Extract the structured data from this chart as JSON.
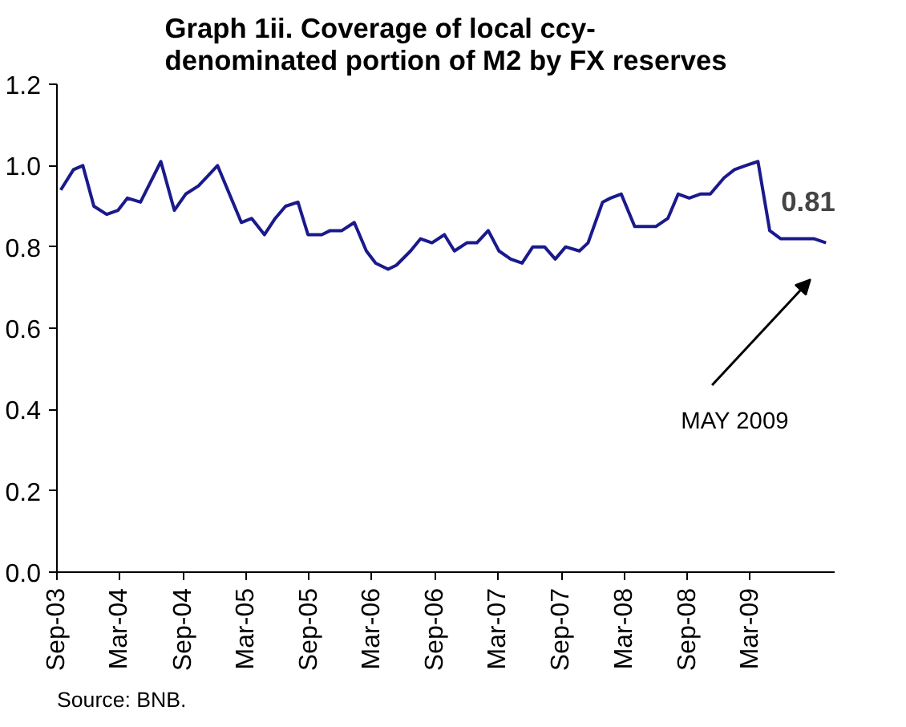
{
  "chart_data": {
    "type": "line",
    "title": "Graph 1ii. Coverage of local ccy-\ndenominated portion of M2 by FX reserves",
    "x": [
      "2003-09-12",
      "2003-10-19",
      "2003-11-15",
      "2003-12-17",
      "2004-01-23",
      "2004-02-25",
      "2004-03-23",
      "2004-04-30",
      "2004-06-28",
      "2004-08-06",
      "2004-09-08",
      "2004-10-15",
      "2004-12-09",
      "2005-02-16",
      "2005-03-18",
      "2005-04-24",
      "2005-05-25",
      "2005-06-24",
      "2005-07-30",
      "2005-08-28",
      "2005-10-07",
      "2005-10-31",
      "2005-12-04",
      "2006-01-09",
      "2006-02-13",
      "2006-03-12",
      "2006-04-17",
      "2006-05-11",
      "2006-06-21",
      "2006-07-20",
      "2006-08-22",
      "2006-09-27",
      "2006-10-26",
      "2006-12-01",
      "2006-12-30",
      "2007-02-01",
      "2007-03-04",
      "2007-04-07",
      "2007-05-10",
      "2007-06-10",
      "2007-07-14",
      "2007-08-14",
      "2007-09-13",
      "2007-10-23",
      "2007-11-17",
      "2007-12-29",
      "2008-01-21",
      "2008-02-21",
      "2008-03-31",
      "2008-05-03",
      "2008-05-31",
      "2008-07-05",
      "2008-08-04",
      "2008-09-05",
      "2008-10-07",
      "2008-11-05",
      "2008-12-15",
      "2009-01-14",
      "2009-02-15",
      "2009-03-23",
      "2009-04-26",
      "2009-05-28",
      "2009-06-26",
      "2009-07-29",
      "2009-09-02",
      "2009-10-06"
    ],
    "series": [
      {
        "color": "#1a1a8c",
        "values": [
          0.94,
          0.99,
          1.0,
          0.9,
          0.88,
          0.89,
          0.92,
          0.91,
          1.01,
          0.89,
          0.93,
          0.95,
          1.0,
          0.86,
          0.87,
          0.83,
          0.87,
          0.9,
          0.91,
          0.83,
          0.83,
          0.84,
          0.84,
          0.86,
          0.79,
          0.76,
          0.745,
          0.755,
          0.79,
          0.82,
          0.81,
          0.83,
          0.79,
          0.81,
          0.81,
          0.84,
          0.79,
          0.77,
          0.76,
          0.8,
          0.8,
          0.77,
          0.8,
          0.79,
          0.81,
          0.91,
          0.92,
          0.93,
          0.85,
          0.85,
          0.85,
          0.87,
          0.93,
          0.92,
          0.93,
          0.93,
          0.97,
          0.99,
          1.0,
          1.01,
          0.84,
          0.82,
          0.82,
          0.82,
          0.82,
          0.81
        ]
      }
    ],
    "xlim": [
      "2003-09-01",
      "2009-10-31"
    ],
    "xticks": [
      {
        "value": "2003-09",
        "label": "Sep-03"
      },
      {
        "value": "2004-03",
        "label": "Mar-04"
      },
      {
        "value": "2004-09",
        "label": "Sep-04"
      },
      {
        "value": "2005-03",
        "label": "Mar-05"
      },
      {
        "value": "2005-09",
        "label": "Sep-05"
      },
      {
        "value": "2006-03",
        "label": "Mar-06"
      },
      {
        "value": "2006-09",
        "label": "Sep-06"
      },
      {
        "value": "2007-03",
        "label": "Mar-07"
      },
      {
        "value": "2007-09",
        "label": "Sep-07"
      },
      {
        "value": "2008-03",
        "label": "Mar-08"
      },
      {
        "value": "2008-09",
        "label": "Sep-08"
      },
      {
        "value": "2009-03",
        "label": "Mar-09"
      }
    ],
    "ylim": [
      0,
      1.2
    ],
    "yticks": [
      {
        "value": 0,
        "label": "0.0"
      },
      {
        "value": 0.2,
        "label": "0.2"
      },
      {
        "value": 0.4,
        "label": "0.4"
      },
      {
        "value": 0.6,
        "label": "0.6"
      },
      {
        "value": 0.8,
        "label": "0.8"
      },
      {
        "value": 1.0,
        "label": "1.0"
      },
      {
        "value": 1.2,
        "label": "1.2"
      }
    ],
    "grid": false,
    "annotations": [
      {
        "text": "0.81",
        "x": "2009-10-06",
        "y": 0.81
      },
      "MAY 2009",
      "Source: BNB."
    ]
  }
}
